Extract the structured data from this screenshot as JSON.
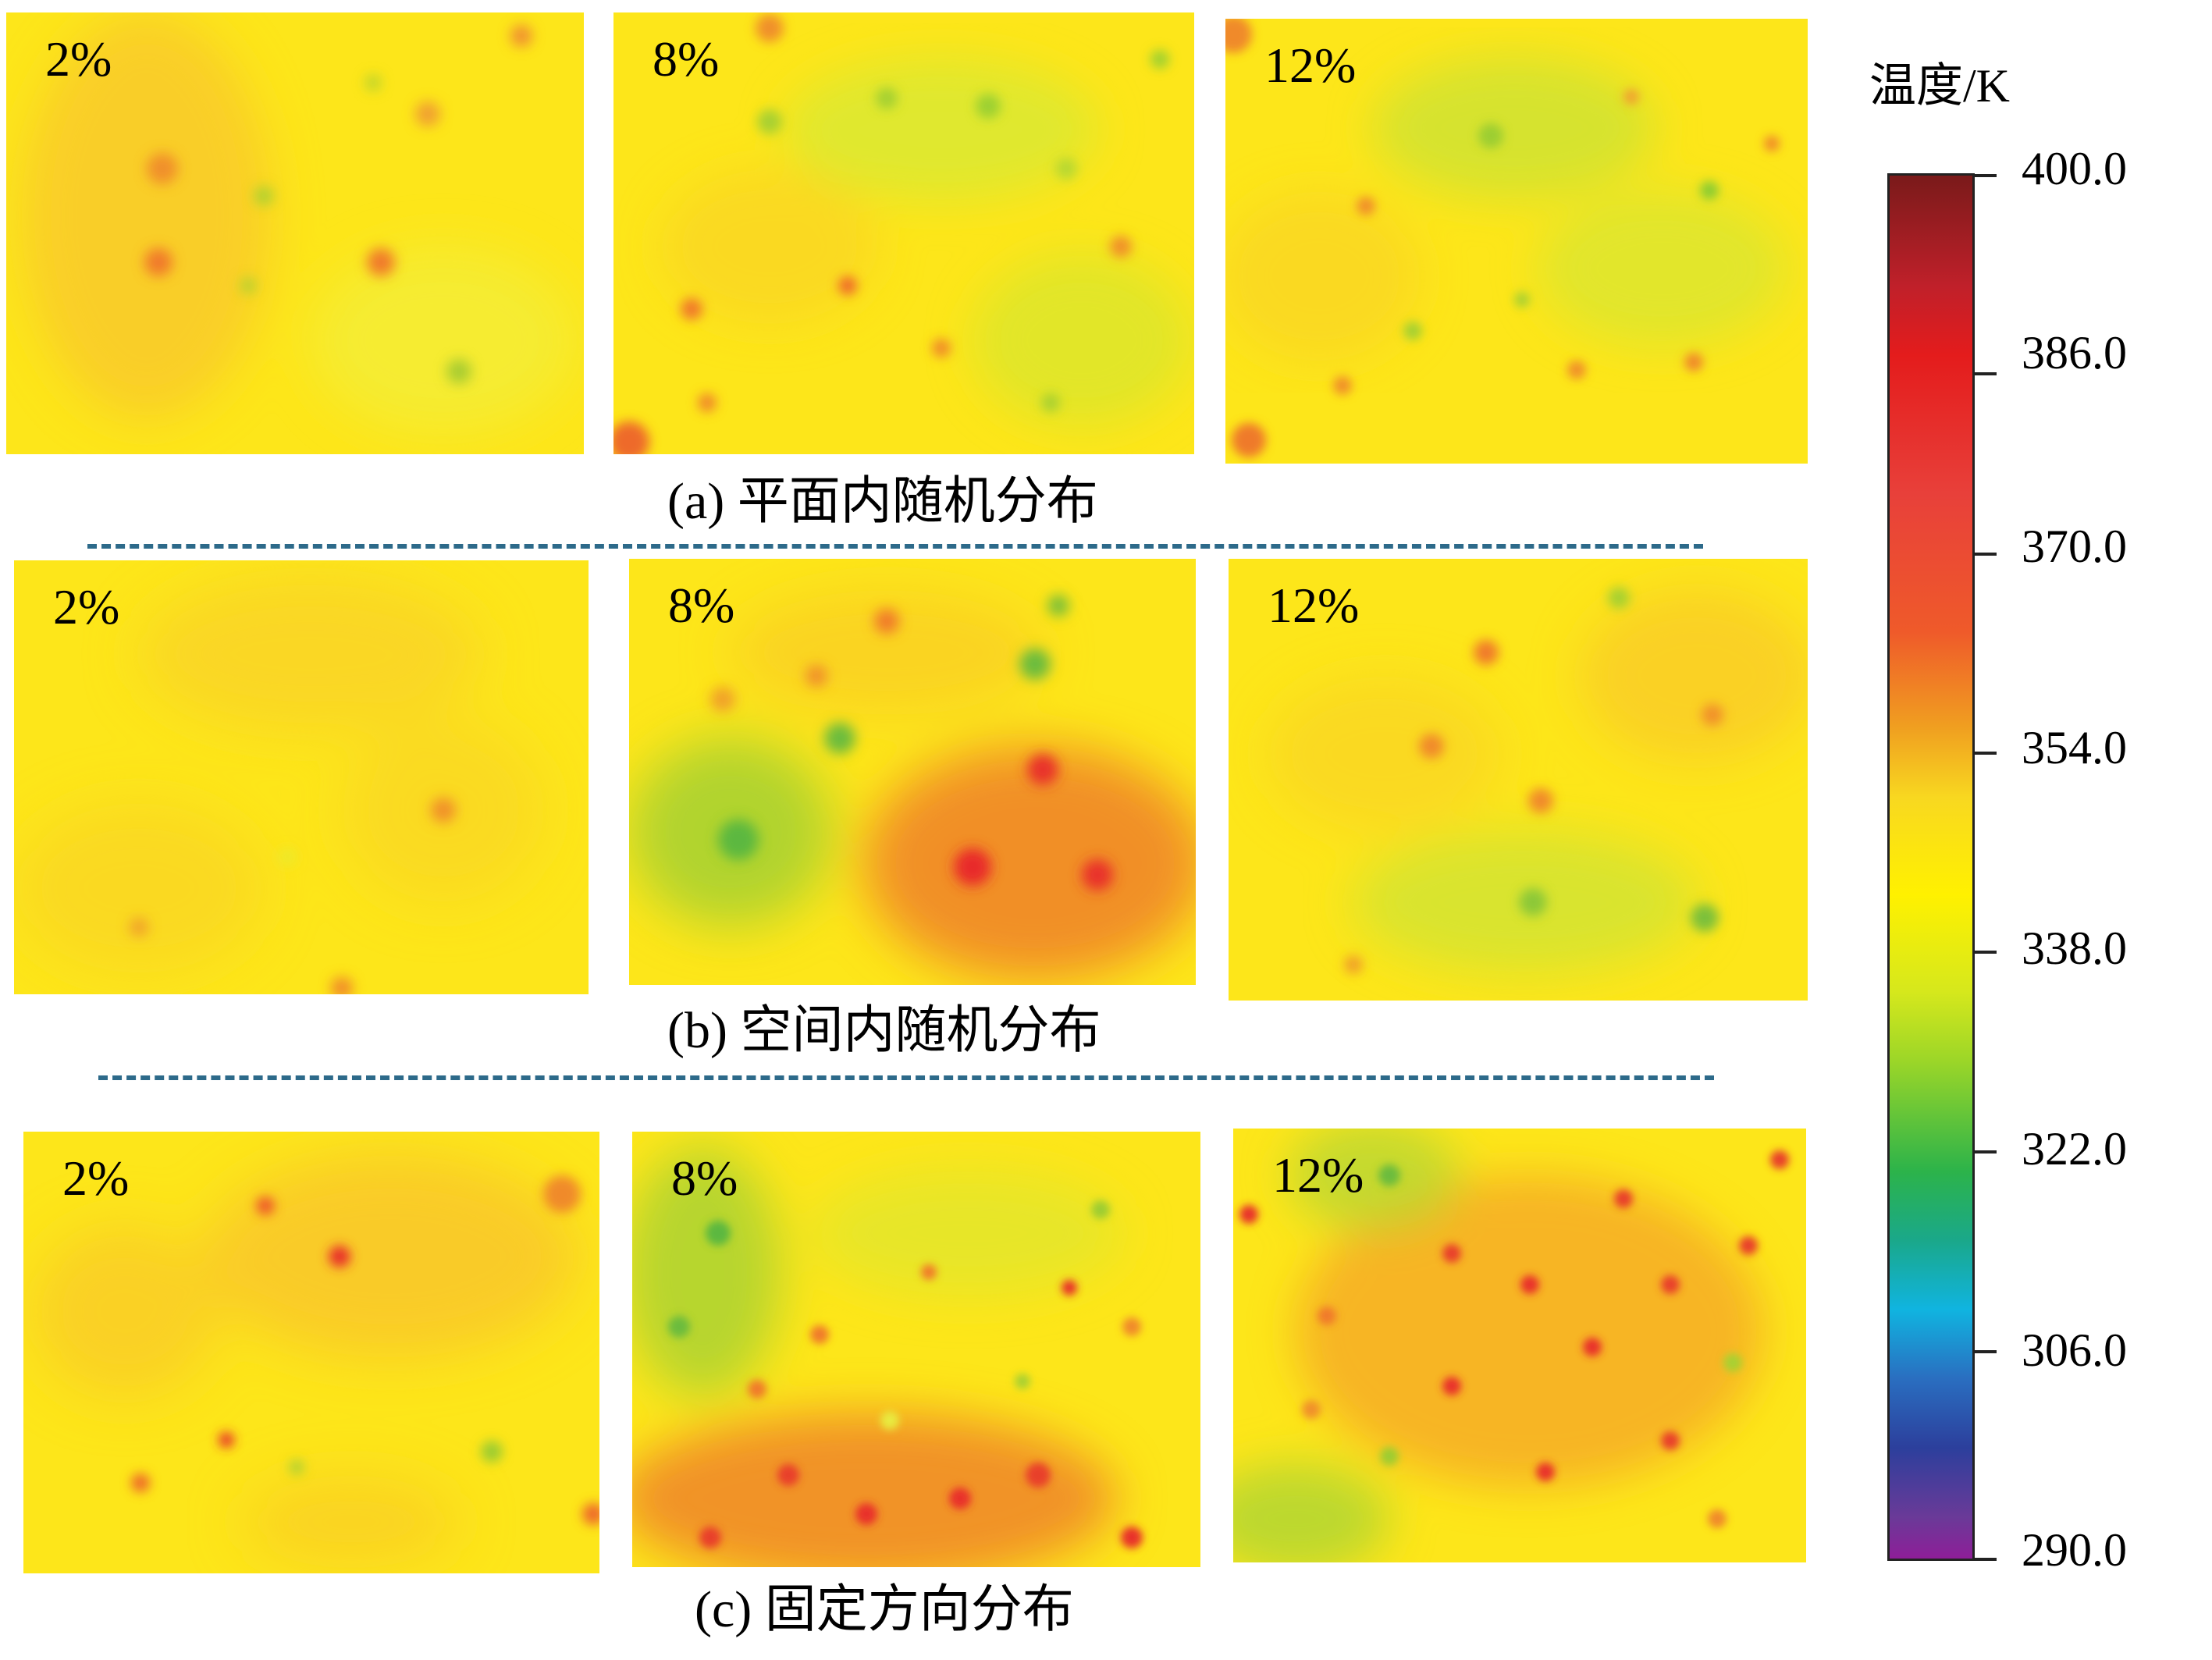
{
  "rows": [
    {
      "caption": "(a) 平面内随机分布",
      "panels": [
        "2%",
        "8%",
        "12%"
      ]
    },
    {
      "caption": "(b) 空间内随机分布",
      "panels": [
        "2%",
        "8%",
        "12%"
      ]
    },
    {
      "caption": "(c) 固定方向分布",
      "panels": [
        "2%",
        "8%",
        "12%"
      ]
    }
  ],
  "colorbar": {
    "title": "温度/K",
    "ticks": [
      "400.0",
      "386.0",
      "370.0",
      "354.0",
      "338.0",
      "322.0",
      "306.0",
      "290.0"
    ],
    "colors": {
      "max": "#7a1a1a",
      "high": "#e41c1c",
      "mid": "#fff100",
      "low_green": "#2cb34a",
      "low_cyan": "#10b4e0",
      "low_blue": "#2c3f9c",
      "min": "#8e1e98"
    }
  }
}
